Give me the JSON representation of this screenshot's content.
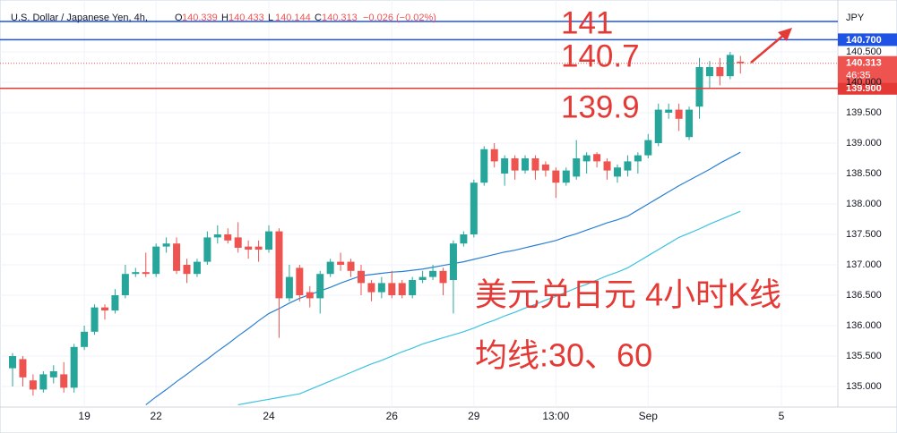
{
  "chart_data": {
    "type": "candlestick",
    "title": "U.S. Dollar / Japanese Yen, 4h,",
    "header_fields": [
      {
        "key": "O",
        "value": 140.339
      },
      {
        "key": "H",
        "value": 140.433
      },
      {
        "key": "L",
        "value": 140.144
      },
      {
        "key": "C",
        "value": 140.313
      }
    ],
    "change_label": "−0.026 (−0.02%)",
    "currency": "JPY",
    "categories": [
      null,
      null,
      null,
      null,
      null,
      null,
      null,
      "19",
      null,
      null,
      null,
      null,
      null,
      null,
      "22",
      null,
      null,
      null,
      null,
      null,
      null,
      null,
      null,
      null,
      null,
      "24",
      null,
      null,
      null,
      null,
      null,
      null,
      null,
      null,
      null,
      null,
      null,
      "26",
      null,
      null,
      null,
      null,
      null,
      null,
      null,
      "29",
      null,
      null,
      null,
      null,
      null,
      null,
      null,
      "13:00",
      null,
      null,
      null,
      null,
      null,
      null,
      null,
      null,
      "Sep",
      null,
      null,
      null,
      null,
      null,
      null,
      null,
      null,
      null,
      null,
      null,
      null,
      "5",
      null,
      null,
      null,
      null,
      null
    ],
    "open": [
      135.3,
      135.45,
      135.1,
      134.95,
      135.15,
      135.2,
      134.98,
      135.65,
      135.9,
      136.3,
      136.25,
      136.5,
      136.85,
      136.88,
      136.85,
      137.3,
      137.35,
      137.0,
      136.85,
      137.05,
      137.45,
      137.5,
      137.45,
      137.3,
      137.3,
      137.25,
      137.55,
      136.45,
      136.95,
      136.55,
      136.45,
      136.85,
      137.05,
      137.05,
      136.9,
      136.7,
      136.55,
      136.7,
      136.7,
      136.5,
      136.75,
      136.8,
      136.9,
      136.75,
      137.35,
      137.5,
      138.35,
      138.9,
      138.5,
      138.75,
      138.55,
      138.75,
      138.65,
      138.55,
      138.35,
      138.45,
      138.7,
      138.82,
      138.7,
      138.45,
      138.55,
      138.7,
      138.8,
      139.0,
      139.5,
      139.55,
      139.1,
      139.6,
      140.1,
      140.25,
      140.1,
      140.339,
      null,
      null,
      null,
      null,
      null,
      null,
      null,
      null,
      null
    ],
    "high": [
      135.55,
      135.5,
      135.2,
      135.25,
      135.35,
      135.4,
      135.7,
      136.0,
      136.35,
      136.35,
      136.6,
      137.0,
      136.95,
      137.2,
      137.35,
      137.45,
      137.45,
      137.1,
      137.1,
      137.55,
      137.65,
      137.6,
      137.7,
      137.4,
      137.4,
      137.65,
      137.6,
      137.0,
      137.0,
      136.65,
      136.9,
      137.1,
      137.2,
      137.1,
      137.0,
      136.75,
      136.8,
      136.9,
      136.75,
      136.8,
      136.9,
      137.0,
      136.95,
      137.4,
      137.55,
      138.4,
      138.95,
      139.0,
      138.8,
      138.8,
      138.8,
      138.8,
      138.7,
      138.6,
      138.6,
      139.05,
      138.85,
      138.85,
      138.75,
      138.65,
      138.8,
      138.85,
      139.15,
      139.65,
      139.65,
      139.65,
      139.6,
      140.4,
      140.35,
      140.4,
      140.5,
      140.433,
      null,
      null,
      null,
      null,
      null,
      null,
      null,
      null,
      null
    ],
    "low": [
      135.0,
      135.0,
      134.85,
      134.9,
      135.05,
      134.9,
      134.9,
      135.6,
      135.85,
      136.1,
      136.2,
      136.45,
      136.8,
      136.8,
      136.8,
      137.2,
      136.85,
      136.7,
      136.8,
      137.0,
      137.35,
      137.35,
      137.2,
      137.1,
      137.05,
      137.2,
      135.8,
      136.4,
      136.4,
      136.3,
      136.2,
      136.8,
      136.9,
      136.8,
      136.5,
      136.4,
      136.45,
      136.45,
      136.45,
      136.45,
      136.7,
      136.75,
      136.5,
      136.2,
      137.3,
      137.45,
      138.3,
      138.6,
      138.3,
      138.4,
      138.5,
      138.4,
      138.45,
      138.1,
      138.3,
      138.4,
      138.5,
      138.6,
      138.4,
      138.35,
      138.45,
      138.5,
      138.75,
      138.95,
      139.4,
      139.2,
      139.05,
      139.4,
      139.9,
      139.95,
      140.05,
      140.144,
      null,
      null,
      null,
      null,
      null,
      null,
      null,
      null,
      null
    ],
    "close": [
      135.5,
      135.15,
      134.95,
      135.2,
      135.25,
      134.98,
      135.65,
      135.9,
      136.3,
      136.25,
      136.5,
      136.85,
      136.88,
      136.85,
      137.3,
      137.35,
      136.9,
      136.85,
      137.05,
      137.45,
      137.5,
      137.4,
      137.28,
      137.25,
      137.25,
      137.55,
      136.45,
      136.8,
      136.5,
      136.45,
      136.85,
      137.05,
      137.0,
      136.9,
      136.7,
      136.55,
      136.7,
      136.5,
      136.5,
      136.75,
      136.8,
      136.9,
      136.7,
      137.35,
      137.5,
      138.35,
      138.9,
      138.7,
      138.75,
      138.55,
      138.75,
      138.55,
      138.55,
      138.35,
      138.55,
      138.75,
      138.8,
      138.7,
      138.55,
      138.6,
      138.7,
      138.8,
      139.05,
      139.55,
      139.55,
      139.4,
      139.55,
      140.25,
      140.25,
      140.1,
      140.45,
      140.313,
      null,
      null,
      null,
      null,
      null,
      null,
      null,
      null,
      null
    ],
    "up_color": "#26a69a",
    "down_color": "#ef5350",
    "series": [
      {
        "color": "#2a7fd4",
        "values": [
          null,
          null,
          null,
          null,
          null,
          null,
          null,
          null,
          null,
          null,
          null,
          null,
          null,
          134.7,
          134.83,
          134.95,
          135.08,
          135.2,
          135.33,
          135.45,
          135.58,
          135.7,
          135.83,
          135.95,
          136.08,
          136.2,
          136.28,
          136.37,
          136.45,
          136.51,
          136.57,
          136.63,
          136.7,
          136.76,
          136.82,
          136.84,
          136.86,
          136.88,
          136.89,
          136.91,
          136.93,
          136.96,
          136.99,
          137.02,
          137.05,
          137.09,
          137.13,
          137.17,
          137.21,
          137.24,
          137.28,
          137.32,
          137.36,
          137.4,
          137.46,
          137.51,
          137.57,
          137.63,
          137.69,
          137.74,
          137.8,
          137.9,
          138.0,
          138.1,
          138.2,
          138.3,
          138.39,
          138.48,
          138.57,
          138.67,
          138.76,
          138.85,
          null,
          null,
          null,
          null,
          null,
          null,
          null,
          null,
          null
        ]
      },
      {
        "color": "#3cc3de",
        "values": [
          null,
          null,
          null,
          null,
          null,
          null,
          null,
          null,
          null,
          null,
          null,
          null,
          null,
          null,
          null,
          null,
          null,
          null,
          null,
          null,
          null,
          null,
          134.7,
          134.73,
          134.76,
          134.79,
          134.82,
          134.85,
          134.88,
          134.95,
          135.02,
          135.09,
          135.16,
          135.23,
          135.3,
          135.37,
          135.43,
          135.5,
          135.57,
          135.63,
          135.7,
          135.75,
          135.8,
          135.85,
          135.9,
          135.96,
          136.03,
          136.09,
          136.16,
          136.22,
          136.29,
          136.35,
          136.42,
          136.48,
          136.55,
          136.62,
          136.68,
          136.75,
          136.82,
          136.88,
          136.95,
          137.05,
          137.15,
          137.25,
          137.35,
          137.45,
          137.52,
          137.59,
          137.67,
          137.74,
          137.81,
          137.88,
          null,
          null,
          null,
          null,
          null,
          null,
          null,
          null,
          null
        ]
      }
    ],
    "ylim": [
      134.662,
      141.235
    ],
    "yticks": [
      {
        "value": 135,
        "label": "135.000"
      },
      {
        "value": 135.5,
        "label": "135.500"
      },
      {
        "value": 136,
        "label": "136.000"
      },
      {
        "value": 136.5,
        "label": "136.500"
      },
      {
        "value": 137,
        "label": "137.000"
      },
      {
        "value": 137.5,
        "label": "137.500"
      },
      {
        "value": 138,
        "label": "138.000"
      },
      {
        "value": 138.5,
        "label": "138.500"
      },
      {
        "value": 139,
        "label": "139.000"
      },
      {
        "value": 139.5,
        "label": "139.500"
      },
      {
        "value": 140,
        "label": "140.000"
      },
      {
        "value": 140.5,
        "label": "140.500"
      }
    ],
    "grid": true,
    "levels": [
      {
        "value": 141,
        "color": "#1e53e5"
      },
      {
        "value": 140.7,
        "color": "#1e53e5",
        "axis_label": "140.700"
      },
      {
        "value": 139.9,
        "color": "#e53935",
        "axis_label": "139.900"
      }
    ],
    "last_price": {
      "value": 140.313,
      "color": "#ef5350",
      "countdown": "46:35"
    },
    "annotations": [
      "美元兑日元 4小时K线",
      "均线:30、60"
    ]
  }
}
